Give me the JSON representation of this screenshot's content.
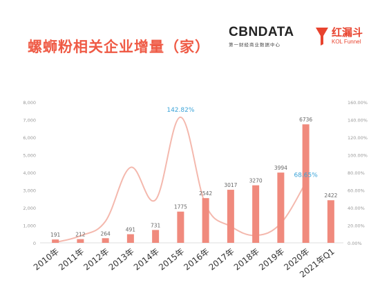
{
  "title": "螺蛳粉相关企业增量（家）",
  "brands": {
    "cbn_logo": "CBNDATA",
    "cbn_sub": "第一财经商业数据中心",
    "kol_name": "红漏斗",
    "kol_sub": "KOL Funnel"
  },
  "colors": {
    "title": "#ef5a45",
    "bar": "#f08a7d",
    "line": "#f4b8ad",
    "annotation": "#3aa3d8",
    "axis_text": "#999999",
    "value_text": "#666666",
    "category_text": "#333333"
  },
  "chart_data": {
    "type": "bar",
    "categories": [
      "2010年",
      "2011年",
      "2012年",
      "2013年",
      "2014年",
      "2015年",
      "2016年",
      "2017年",
      "2018年",
      "2019年",
      "2020年",
      "2021年Q1"
    ],
    "series": [
      {
        "values": [
          191,
          212,
          264,
          491,
          731,
          1775,
          2542,
          3017,
          3270,
          3994,
          6736,
          2422
        ]
      },
      {
        "type": "line",
        "axis": "right",
        "values": [
          0.5,
          8.0,
          24.5,
          85.7,
          48.9,
          142.82,
          43.2,
          18.7,
          8.4,
          22.1,
          68.65,
          null
        ]
      }
    ],
    "value_labels": [
      "191",
      "212",
      "264",
      "491",
      "731",
      "1775",
      "2542",
      "3017",
      "3270",
      "3994",
      "6736",
      "2422"
    ],
    "annotations": [
      {
        "index": 5,
        "text": "142.82%"
      },
      {
        "index": 10,
        "text": "68.65%"
      }
    ],
    "left_axis": {
      "min": 0,
      "max": 8000,
      "ticks": [
        "0",
        "1,000",
        "2,000",
        "3,000",
        "4,000",
        "5,000",
        "6,000",
        "7,000",
        "8,000"
      ]
    },
    "right_axis": {
      "min": 0,
      "max": 160,
      "ticks": [
        "0.00%",
        "20.00%",
        "40.00%",
        "60.00%",
        "80.00%",
        "100.00%",
        "120.00%",
        "140.00%",
        "160.00%"
      ]
    },
    "grid": false,
    "legend": "none"
  }
}
